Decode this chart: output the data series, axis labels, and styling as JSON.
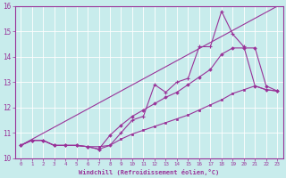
{
  "xlabel": "Windchill (Refroidissement éolien,°C)",
  "xlim": [
    -0.5,
    23.5
  ],
  "ylim": [
    10,
    16
  ],
  "yticks": [
    10,
    11,
    12,
    13,
    14,
    15,
    16
  ],
  "xticks": [
    0,
    1,
    2,
    3,
    4,
    5,
    6,
    7,
    8,
    9,
    10,
    11,
    12,
    13,
    14,
    15,
    16,
    17,
    18,
    19,
    20,
    21,
    22,
    23
  ],
  "bg_color": "#c8ecec",
  "line_color": "#993399",
  "grid_color": "#b0d8d8",
  "line1_x": [
    0,
    23
  ],
  "line1_y": [
    10.5,
    16.0
  ],
  "line2_x": [
    0,
    1,
    2,
    3,
    4,
    5,
    6,
    7,
    8,
    9,
    10,
    11,
    12,
    13,
    14,
    15,
    16,
    17,
    18,
    19,
    20,
    21,
    22,
    23
  ],
  "line2_y": [
    10.5,
    10.7,
    10.7,
    10.5,
    10.5,
    10.5,
    10.45,
    10.35,
    10.5,
    11.0,
    11.5,
    11.65,
    12.9,
    12.6,
    13.0,
    13.15,
    14.4,
    14.4,
    15.8,
    14.9,
    14.4,
    12.85,
    12.7,
    12.65
  ],
  "line3_x": [
    0,
    1,
    2,
    3,
    4,
    5,
    6,
    7,
    8,
    9,
    10,
    11,
    12,
    13,
    14,
    15,
    16,
    17,
    18,
    19,
    20,
    21,
    22,
    23
  ],
  "line3_y": [
    10.5,
    10.7,
    10.7,
    10.5,
    10.5,
    10.5,
    10.45,
    10.35,
    10.9,
    11.3,
    11.65,
    11.9,
    12.15,
    12.4,
    12.6,
    12.9,
    13.2,
    13.5,
    14.1,
    14.35,
    14.35,
    14.35,
    12.85,
    12.65
  ],
  "line4_x": [
    0,
    1,
    2,
    3,
    4,
    5,
    6,
    7,
    8,
    9,
    10,
    11,
    12,
    13,
    14,
    15,
    16,
    17,
    18,
    19,
    20,
    21,
    22,
    23
  ],
  "line4_y": [
    10.5,
    10.7,
    10.7,
    10.5,
    10.5,
    10.5,
    10.45,
    10.45,
    10.5,
    10.75,
    10.95,
    11.1,
    11.25,
    11.4,
    11.55,
    11.7,
    11.9,
    12.1,
    12.3,
    12.55,
    12.7,
    12.85,
    12.7,
    12.65
  ]
}
